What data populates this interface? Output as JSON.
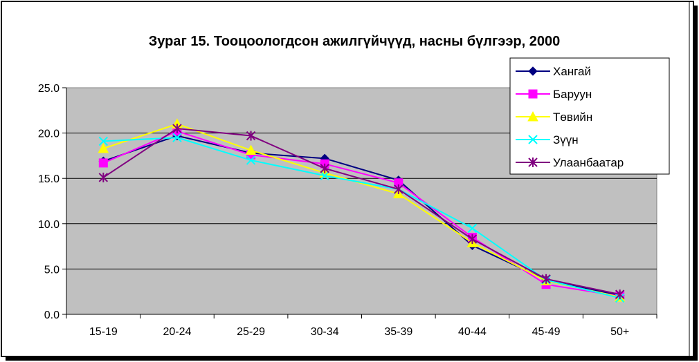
{
  "chart_data": {
    "type": "line",
    "title": "Зураг 15. Тооцоологдсон ажилгүйчүүд, насны бүлгээр, 2000",
    "xlabel": "",
    "ylabel": "",
    "categories": [
      "15-19",
      "20-24",
      "25-29",
      "30-34",
      "35-39",
      "40-44",
      "45-49",
      "50+"
    ],
    "ylim": [
      0,
      25
    ],
    "yticks": [
      "0.0",
      "5.0",
      "10.0",
      "15.0",
      "20.0",
      "25.0"
    ],
    "grid": true,
    "legend_position": "top-right",
    "plot_background": "#c0c0c0",
    "series": [
      {
        "name": "Хангай",
        "color": "#000080",
        "marker": "diamond",
        "values": [
          16.9,
          19.7,
          17.8,
          17.2,
          14.8,
          7.6,
          3.8,
          2.1
        ]
      },
      {
        "name": "Баруун",
        "color": "#ff00ff",
        "marker": "square",
        "values": [
          16.7,
          20.2,
          17.6,
          16.6,
          14.5,
          8.5,
          3.3,
          2.0
        ]
      },
      {
        "name": "Төвийн",
        "color": "#ffff00",
        "marker": "triangle",
        "values": [
          18.3,
          21.0,
          18.1,
          15.6,
          13.3,
          7.9,
          3.7,
          1.9
        ]
      },
      {
        "name": "Зүүн",
        "color": "#00ffff",
        "marker": "x",
        "values": [
          19.1,
          19.5,
          17.0,
          15.3,
          13.8,
          9.5,
          3.8,
          1.8
        ]
      },
      {
        "name": "Улаанбаатар",
        "color": "#800080",
        "marker": "asterisk",
        "values": [
          15.1,
          20.5,
          19.7,
          16.1,
          13.8,
          8.3,
          3.9,
          2.2
        ]
      }
    ]
  }
}
